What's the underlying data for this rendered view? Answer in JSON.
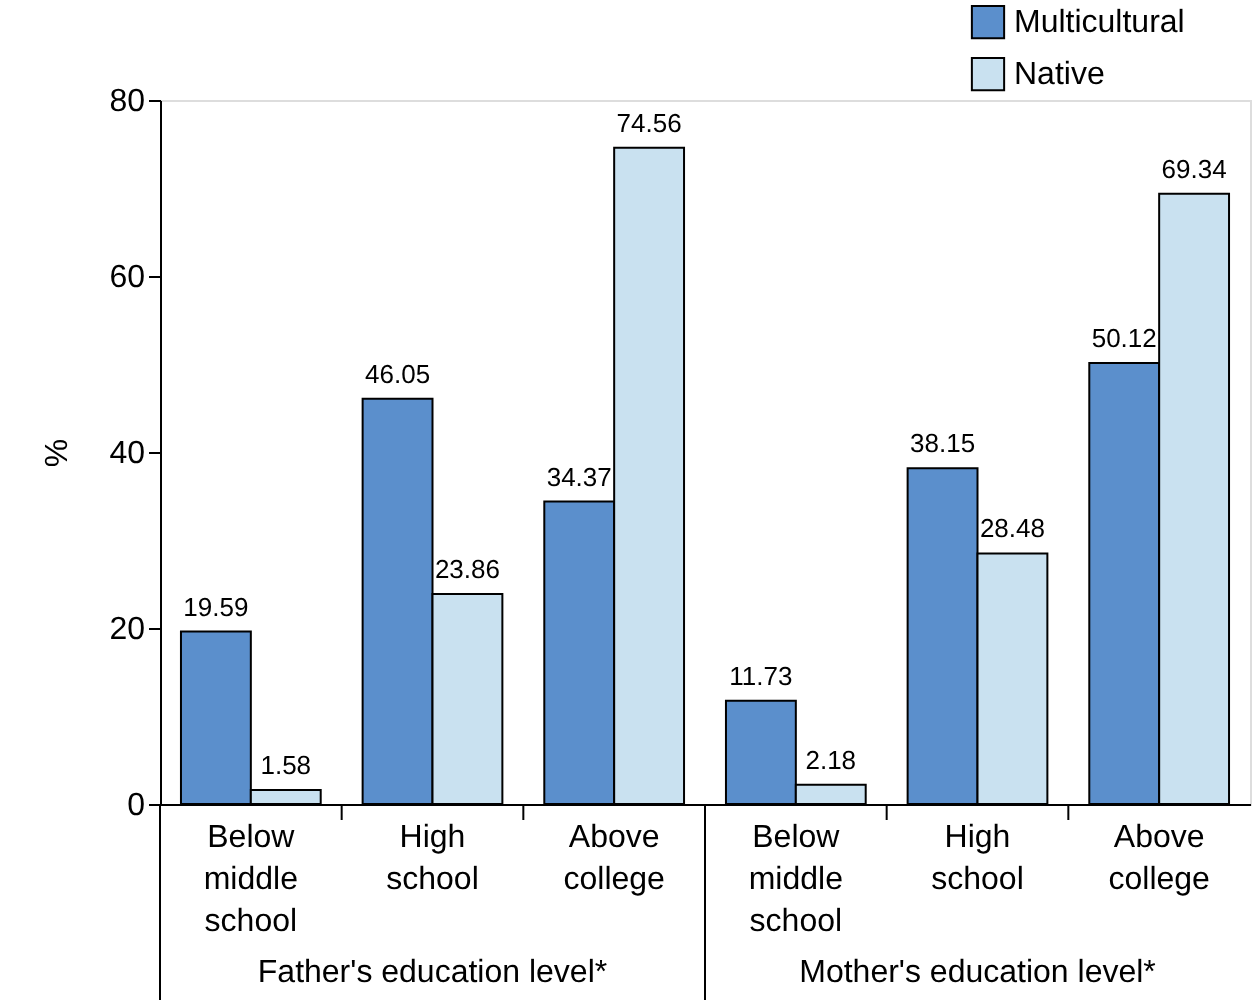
{
  "chart_data": {
    "type": "bar",
    "ylabel": "%",
    "categories": [
      "Below middle school",
      "High school",
      "Above college",
      "Below middle school",
      "High school",
      "Above college"
    ],
    "series": [
      {
        "name": "Multicultural",
        "color": "#5b8fcc",
        "values": [
          19.59,
          46.05,
          34.37,
          11.73,
          38.15,
          50.12
        ]
      },
      {
        "name": "Native",
        "color": "#c9e1f0",
        "values": [
          1.58,
          23.86,
          74.56,
          2.18,
          28.48,
          69.34
        ]
      }
    ],
    "annotations": [
      "Father's education level*",
      "Mother's education level*"
    ],
    "ylim": [
      0,
      80
    ],
    "yticks": [
      0,
      20,
      40,
      60,
      80
    ],
    "grid": false,
    "legend": "top right",
    "data_labels": true
  }
}
